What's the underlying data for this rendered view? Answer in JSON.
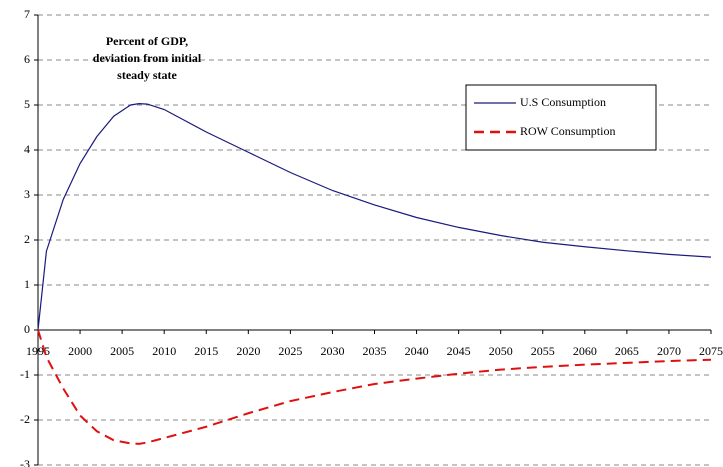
{
  "chart_data": {
    "type": "line",
    "annotation": [
      "Percent of GDP,",
      "deviation from initial",
      "steady state"
    ],
    "x": [
      1995,
      1996,
      1998,
      2000,
      2002,
      2004,
      2006,
      2007,
      2008,
      2010,
      2012,
      2015,
      2020,
      2025,
      2030,
      2035,
      2040,
      2045,
      2050,
      2055,
      2060,
      2065,
      2070,
      2075
    ],
    "series": [
      {
        "name": "U.S Consumption",
        "color": "#1a1a80",
        "dash": false,
        "values": [
          0,
          1.75,
          2.9,
          3.7,
          4.3,
          4.75,
          5.0,
          5.03,
          5.02,
          4.9,
          4.7,
          4.4,
          3.95,
          3.5,
          3.1,
          2.78,
          2.5,
          2.28,
          2.1,
          1.95,
          1.85,
          1.76,
          1.68,
          1.62
        ]
      },
      {
        "name": "ROW Consumption",
        "color": "#e01010",
        "dash": true,
        "values": [
          0,
          -0.6,
          -1.3,
          -1.9,
          -2.25,
          -2.45,
          -2.52,
          -2.53,
          -2.5,
          -2.4,
          -2.3,
          -2.15,
          -1.85,
          -1.58,
          -1.38,
          -1.2,
          -1.08,
          -0.97,
          -0.88,
          -0.82,
          -0.77,
          -0.73,
          -0.69,
          -0.66
        ]
      }
    ],
    "xlim": [
      1995,
      2075
    ],
    "xticks": [
      1995,
      2000,
      2005,
      2010,
      2015,
      2020,
      2025,
      2030,
      2035,
      2040,
      2045,
      2050,
      2055,
      2060,
      2065,
      2070,
      2075
    ],
    "ylim": [
      -3,
      7
    ],
    "yticks": [
      -3,
      -2,
      -1,
      0,
      1,
      2,
      3,
      4,
      5,
      6,
      7
    ],
    "grid": true
  }
}
